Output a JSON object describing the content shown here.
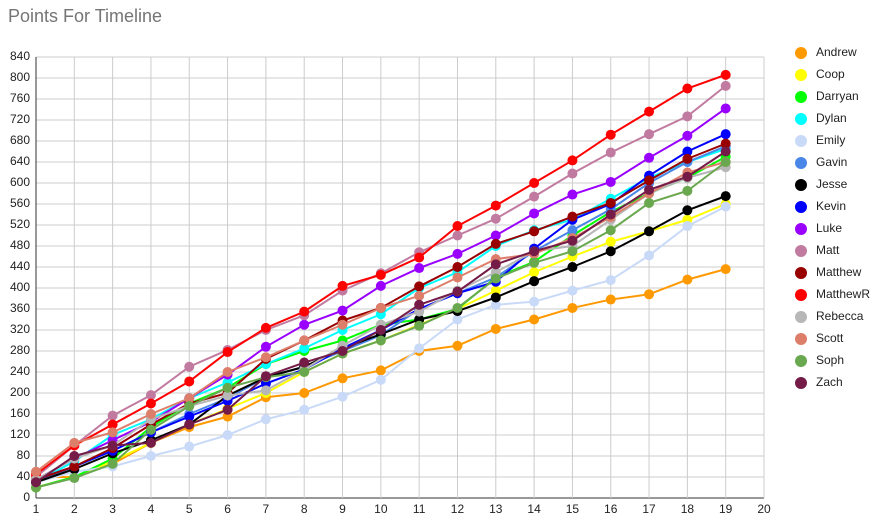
{
  "chart_data": {
    "type": "line",
    "title": "Points For Timeline",
    "x": [
      1,
      2,
      3,
      4,
      5,
      6,
      7,
      8,
      9,
      10,
      11,
      12,
      13,
      14,
      15,
      16,
      17,
      18,
      19
    ],
    "xlim": [
      1,
      20
    ],
    "xticks": [
      1,
      2,
      3,
      4,
      5,
      6,
      7,
      8,
      9,
      10,
      11,
      12,
      13,
      14,
      15,
      16,
      17,
      18,
      19,
      20
    ],
    "ylim": [
      0,
      840
    ],
    "yticks": [
      0,
      40,
      80,
      120,
      160,
      200,
      240,
      280,
      320,
      360,
      400,
      440,
      480,
      520,
      560,
      600,
      640,
      680,
      720,
      760,
      800,
      840
    ],
    "grid": true,
    "legend": "right",
    "series": [
      {
        "name": "Andrew",
        "color": "#ff9900",
        "values": [
          40,
          40,
          65,
          105,
          135,
          155,
          192,
          200,
          228,
          243,
          280,
          290,
          322,
          340,
          362,
          378,
          388,
          416,
          436
        ]
      },
      {
        "name": "Coop",
        "color": "#ffff00",
        "values": [
          20,
          40,
          70,
          105,
          140,
          170,
          200,
          240,
          275,
          300,
          330,
          360,
          395,
          430,
          460,
          488,
          508,
          530,
          560
        ]
      },
      {
        "name": "Darryan",
        "color": "#00ff00",
        "values": [
          20,
          40,
          75,
          135,
          180,
          210,
          255,
          280,
          300,
          330,
          340,
          360,
          420,
          450,
          500,
          545,
          580,
          610,
          650
        ]
      },
      {
        "name": "Dylan",
        "color": "#00ffff",
        "values": [
          30,
          70,
          120,
          150,
          190,
          220,
          255,
          285,
          320,
          350,
          400,
          430,
          480,
          510,
          530,
          570,
          610,
          640,
          665
        ]
      },
      {
        "name": "Emily",
        "color": "#c9daf8",
        "values": [
          30,
          50,
          60,
          80,
          98,
          120,
          150,
          168,
          193,
          225,
          285,
          340,
          368,
          374,
          395,
          415,
          462,
          518,
          555
        ]
      },
      {
        "name": "Gavin",
        "color": "#4a86e8",
        "values": [
          30,
          60,
          90,
          125,
          160,
          190,
          230,
          250,
          280,
          310,
          360,
          390,
          420,
          470,
          510,
          550,
          600,
          640,
          670
        ]
      },
      {
        "name": "Jesse",
        "color": "#000000",
        "values": [
          30,
          55,
          85,
          110,
          140,
          195,
          230,
          250,
          285,
          312,
          340,
          356,
          382,
          413,
          440,
          470,
          508,
          548,
          575
        ]
      },
      {
        "name": "Kevin",
        "color": "#0000ff",
        "values": [
          35,
          60,
          90,
          125,
          155,
          185,
          218,
          245,
          285,
          320,
          360,
          390,
          412,
          475,
          530,
          560,
          614,
          660,
          693
        ]
      },
      {
        "name": "Luke",
        "color": "#9900ff",
        "values": [
          35,
          75,
          110,
          145,
          190,
          235,
          288,
          330,
          357,
          404,
          438,
          465,
          500,
          542,
          578,
          602,
          648,
          690,
          742
        ]
      },
      {
        "name": "Matt",
        "color": "#c27ba0",
        "values": [
          40,
          100,
          157,
          196,
          250,
          282,
          320,
          348,
          395,
          428,
          468,
          500,
          532,
          574,
          618,
          658,
          693,
          727,
          785
        ]
      },
      {
        "name": "Matthew",
        "color": "#990000",
        "values": [
          35,
          60,
          95,
          140,
          180,
          200,
          265,
          300,
          338,
          362,
          403,
          440,
          484,
          508,
          536,
          562,
          605,
          646,
          675
        ]
      },
      {
        "name": "MatthewR",
        "color": "#ff0000",
        "values": [
          45,
          100,
          140,
          180,
          222,
          278,
          324,
          355,
          404,
          425,
          458,
          518,
          557,
          600,
          643,
          692,
          736,
          780,
          806
        ]
      },
      {
        "name": "Rebecca",
        "color": "#b7b7b7",
        "values": [
          35,
          75,
          100,
          150,
          175,
          195,
          205,
          245,
          290,
          330,
          355,
          395,
          430,
          470,
          480,
          530,
          580,
          610,
          630
        ]
      },
      {
        "name": "Scott",
        "color": "#dd7e6b",
        "values": [
          50,
          105,
          125,
          160,
          190,
          240,
          268,
          300,
          330,
          362,
          385,
          420,
          455,
          465,
          495,
          535,
          580,
          620,
          640
        ]
      },
      {
        "name": "Soph",
        "color": "#6aa84f",
        "values": [
          20,
          38,
          65,
          130,
          175,
          210,
          230,
          240,
          275,
          300,
          328,
          362,
          418,
          448,
          470,
          510,
          562,
          585,
          640
        ]
      },
      {
        "name": "Zach",
        "color": "#741b47",
        "values": [
          30,
          80,
          100,
          105,
          140,
          168,
          232,
          258,
          280,
          320,
          368,
          393,
          445,
          470,
          490,
          540,
          587,
          612,
          660
        ]
      }
    ]
  }
}
